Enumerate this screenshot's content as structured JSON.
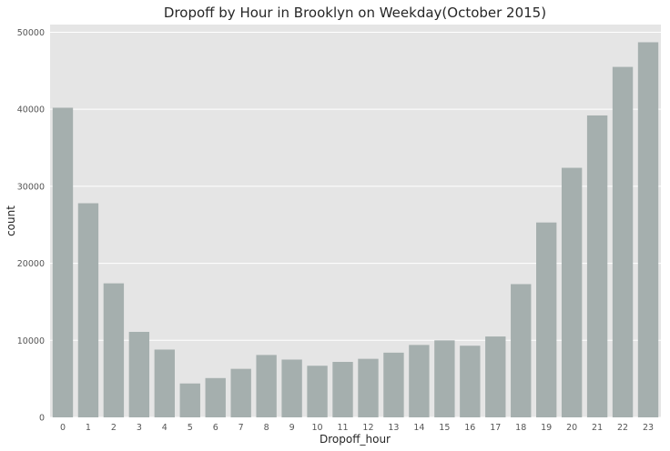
{
  "chart_data": {
    "type": "bar",
    "title": "Dropoff by Hour in Brooklyn on Weekday(October 2015)",
    "xlabel": "Dropoff_hour",
    "ylabel": "count",
    "categories": [
      "0",
      "1",
      "2",
      "3",
      "4",
      "5",
      "6",
      "7",
      "8",
      "9",
      "10",
      "11",
      "12",
      "13",
      "14",
      "15",
      "16",
      "17",
      "18",
      "19",
      "20",
      "21",
      "22",
      "23"
    ],
    "values": [
      40200,
      27800,
      17400,
      11100,
      8800,
      4400,
      5100,
      6300,
      8100,
      7500,
      6700,
      7200,
      7600,
      8400,
      9400,
      10000,
      9300,
      10500,
      17300,
      25300,
      32400,
      39200,
      45500,
      48700
    ],
    "ylim": [
      0,
      51000
    ],
    "yticks": [
      0,
      10000,
      20000,
      30000,
      40000,
      50000
    ],
    "ytick_labels": [
      "0",
      "10000",
      "20000",
      "30000",
      "40000",
      "50000"
    ],
    "grid": true,
    "bar_color": "#a5afae",
    "background_color": "#e5e5e5",
    "grid_color": "#ffffff"
  }
}
